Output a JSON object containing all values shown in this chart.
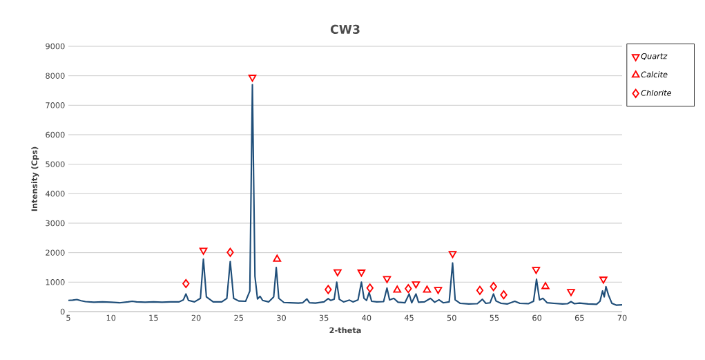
{
  "chart_data": {
    "type": "line",
    "title": "CW3",
    "xlabel": "2-theta",
    "ylabel": "Intensity (Cps)",
    "xlim": [
      5,
      70
    ],
    "xticks": [
      5,
      10,
      15,
      20,
      25,
      30,
      35,
      40,
      45,
      50,
      55,
      60,
      65,
      70
    ],
    "ylim": [
      0,
      9000
    ],
    "yticks": [
      0,
      1000,
      2000,
      3000,
      4000,
      5000,
      6000,
      7000,
      8000,
      9000
    ],
    "grid": "y",
    "legend": "top right",
    "series": [
      {
        "type": "line",
        "color": "#1f4e79",
        "marker": "none",
        "x": [
          5,
          5.5,
          6,
          6.5,
          7,
          8,
          9,
          10,
          11,
          12,
          12.5,
          13,
          14,
          15,
          16,
          17,
          18,
          18.5,
          18.8,
          19.1,
          19.8,
          20.5,
          20.85,
          21.2,
          22,
          23,
          23.6,
          24.0,
          24.4,
          25,
          25.8,
          26.3,
          26.6,
          26.9,
          27.2,
          27.5,
          27.8,
          28.5,
          29.1,
          29.4,
          29.7,
          30.3,
          31,
          32,
          32.5,
          33,
          33.3,
          34,
          35,
          35.5,
          35.8,
          36.2,
          36.5,
          36.8,
          37.3,
          38,
          38.4,
          39.0,
          39.4,
          39.7,
          40.0,
          40.3,
          40.6,
          41.2,
          42.0,
          42.4,
          42.7,
          43.2,
          43.7,
          44.5,
          45.0,
          45.3,
          45.8,
          46.1,
          46.8,
          47.5,
          48.0,
          48.5,
          49.0,
          49.7,
          50.1,
          50.4,
          51,
          52,
          53.0,
          53.6,
          54.0,
          54.5,
          54.9,
          55.2,
          55.8,
          56.5,
          57.4,
          58,
          59,
          59.6,
          59.95,
          60.3,
          60.7,
          61.2,
          62,
          63,
          63.6,
          64.0,
          64.4,
          65,
          66,
          67,
          67.4,
          67.7,
          67.9,
          68.1,
          68.4,
          68.8,
          69.3,
          70
        ],
        "values": [
          380,
          390,
          410,
          370,
          340,
          320,
          330,
          320,
          300,
          330,
          350,
          330,
          320,
          330,
          320,
          330,
          330,
          400,
          600,
          380,
          330,
          450,
          1780,
          500,
          330,
          330,
          450,
          1700,
          450,
          360,
          350,
          700,
          7700,
          1200,
          430,
          520,
          380,
          330,
          500,
          1500,
          450,
          310,
          300,
          290,
          300,
          430,
          300,
          290,
          330,
          440,
          380,
          420,
          1000,
          420,
          330,
          390,
          330,
          400,
          1000,
          450,
          380,
          650,
          350,
          330,
          340,
          800,
          400,
          450,
          320,
          300,
          600,
          300,
          600,
          320,
          330,
          450,
          320,
          400,
          300,
          330,
          1650,
          400,
          280,
          260,
          270,
          420,
          280,
          300,
          600,
          360,
          280,
          260,
          350,
          280,
          270,
          350,
          1100,
          400,
          450,
          300,
          280,
          260,
          270,
          340,
          270,
          290,
          260,
          250,
          350,
          700,
          500,
          850,
          560,
          280,
          220,
          230
        ]
      },
      {
        "type": "scatter",
        "name": "Quartz",
        "color": "#ff0000",
        "marker": "triangle_down",
        "x": [
          20.85,
          26.6,
          36.6,
          39.4,
          42.4,
          45.8,
          48.4,
          50.1,
          59.9,
          64.0,
          67.8
        ],
        "values": [
          2080,
          7950,
          1350,
          1340,
          1120,
          940,
          750,
          1970,
          1430,
          680,
          1100
        ]
      },
      {
        "type": "scatter",
        "name": "Calcite",
        "color": "#ff0000",
        "marker": "triangle",
        "x": [
          29.5,
          43.6,
          47.1,
          61.0
        ],
        "values": [
          1780,
          730,
          730,
          850
        ]
      },
      {
        "type": "scatter",
        "name": "Chlorite",
        "color": "#ff0000",
        "marker": "diamond",
        "x": [
          18.8,
          24.0,
          35.5,
          40.4,
          44.9,
          53.3,
          54.9,
          56.1
        ],
        "values": [
          950,
          2010,
          750,
          800,
          780,
          720,
          850,
          570
        ]
      }
    ]
  }
}
